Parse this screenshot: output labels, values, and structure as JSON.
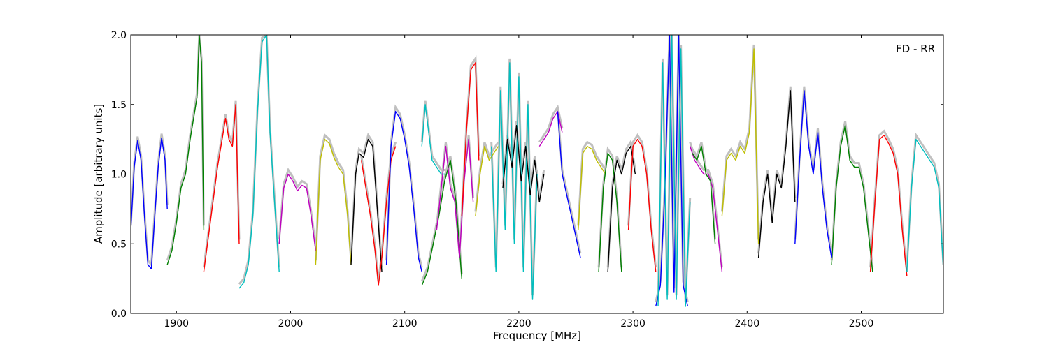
{
  "chart_data": {
    "type": "line",
    "xlabel": "Frequency [MHz]",
    "ylabel": "Amplitude [arbitrary units]",
    "annotation": "FD - RR",
    "xlim": [
      1860,
      2572
    ],
    "ylim": [
      0.0,
      2.0
    ],
    "xticks": [
      1900,
      2000,
      2100,
      2200,
      2300,
      2400,
      2500
    ],
    "xtick_labels": [
      "1900",
      "2000",
      "2100",
      "2200",
      "2300",
      "2400",
      "2500"
    ],
    "yticks": [
      0.0,
      0.5,
      1.0,
      1.5,
      2.0
    ],
    "ytick_labels": [
      "0.0",
      "0.5",
      "1.0",
      "1.5",
      "2.0"
    ],
    "grid": false,
    "background_color": "#c0c0c0",
    "segments": [
      {
        "color": "#0000ff",
        "x": [
          1860,
          1863,
          1866,
          1869,
          1872,
          1875,
          1878,
          1881,
          1884,
          1887,
          1890,
          1892
        ],
        "y": [
          0.6,
          1.05,
          1.24,
          1.1,
          0.7,
          0.35,
          0.32,
          0.7,
          1.05,
          1.26,
          1.1,
          0.75
        ]
      },
      {
        "color": "#008000",
        "x": [
          1892,
          1896,
          1900,
          1904,
          1908,
          1912,
          1915,
          1918,
          1920,
          1922,
          1924
        ],
        "y": [
          0.35,
          0.45,
          0.65,
          0.9,
          1.0,
          1.25,
          1.4,
          1.55,
          2.0,
          1.8,
          0.6
        ]
      },
      {
        "color": "#ff0000",
        "x": [
          1924,
          1928,
          1932,
          1936,
          1940,
          1943,
          1946,
          1949,
          1952,
          1955
        ],
        "y": [
          0.3,
          0.55,
          0.8,
          1.05,
          1.25,
          1.4,
          1.25,
          1.2,
          1.5,
          0.5
        ]
      },
      {
        "color": "#00bfbf",
        "x": [
          1955,
          1959,
          1963,
          1967,
          1971,
          1975,
          1979,
          1982,
          1986,
          1990
        ],
        "y": [
          0.18,
          0.22,
          0.35,
          0.7,
          1.45,
          1.95,
          2.0,
          1.3,
          0.8,
          0.3
        ]
      },
      {
        "color": "#bf00bf",
        "x": [
          1990,
          1994,
          1998,
          2002,
          2006,
          2010,
          2014,
          2018,
          2022
        ],
        "y": [
          0.5,
          0.9,
          1.0,
          0.95,
          0.88,
          0.92,
          0.9,
          0.7,
          0.45
        ]
      },
      {
        "color": "#bfbf00",
        "x": [
          2022,
          2026,
          2030,
          2034,
          2038,
          2042,
          2046,
          2050,
          2053
        ],
        "y": [
          0.35,
          1.1,
          1.25,
          1.22,
          1.12,
          1.05,
          1.0,
          0.7,
          0.35
        ]
      },
      {
        "color": "#000000",
        "x": [
          2053,
          2057,
          2060,
          2064,
          2068,
          2072,
          2076,
          2080
        ],
        "y": [
          0.35,
          1.0,
          1.15,
          1.12,
          1.25,
          1.2,
          0.75,
          0.3
        ]
      },
      {
        "color": "#ff0000",
        "x": [
          2062,
          2066,
          2070,
          2074,
          2077,
          2080,
          2084,
          2088,
          2092
        ],
        "y": [
          1.1,
          0.9,
          0.7,
          0.45,
          0.2,
          0.4,
          0.8,
          1.1,
          1.2
        ]
      },
      {
        "color": "#0000ff",
        "x": [
          2084,
          2088,
          2092,
          2096,
          2100,
          2104,
          2108,
          2112,
          2115
        ],
        "y": [
          0.35,
          1.2,
          1.45,
          1.4,
          1.25,
          1.05,
          0.75,
          0.4,
          0.3
        ]
      },
      {
        "color": "#00bfbf",
        "x": [
          2115,
          2118,
          2121,
          2124,
          2128,
          2132,
          2136
        ],
        "y": [
          1.2,
          1.5,
          1.3,
          1.1,
          1.05,
          1.0,
          1.0
        ]
      },
      {
        "color": "#008000",
        "x": [
          2115,
          2120,
          2125,
          2130,
          2135,
          2140,
          2145,
          2150
        ],
        "y": [
          0.2,
          0.3,
          0.5,
          0.7,
          0.95,
          1.1,
          0.8,
          0.25
        ]
      },
      {
        "color": "#bf00bf",
        "x": [
          2128,
          2132,
          2136,
          2140,
          2144,
          2148,
          2152,
          2156,
          2160
        ],
        "y": [
          0.6,
          0.9,
          1.2,
          0.9,
          0.8,
          0.4,
          0.95,
          1.25,
          0.8
        ]
      },
      {
        "color": "#ff0000",
        "x": [
          2150,
          2154,
          2158,
          2162,
          2165
        ],
        "y": [
          0.7,
          1.3,
          1.75,
          1.8,
          1.1
        ]
      },
      {
        "color": "#bfbf00",
        "x": [
          2162,
          2166,
          2170,
          2174,
          2178,
          2182
        ],
        "y": [
          0.7,
          1.0,
          1.2,
          1.1,
          1.15,
          1.2
        ]
      },
      {
        "color": "#00bfbf",
        "x": [
          2176,
          2180,
          2184,
          2188,
          2192,
          2196,
          2200,
          2204,
          2208,
          2212,
          2216
        ],
        "y": [
          1.2,
          0.3,
          1.6,
          0.6,
          1.8,
          0.5,
          1.7,
          0.3,
          1.5,
          0.1,
          1.0
        ]
      },
      {
        "color": "#000000",
        "x": [
          2186,
          2190,
          2194,
          2198,
          2202,
          2206,
          2210,
          2214,
          2218,
          2222
        ],
        "y": [
          0.9,
          1.25,
          1.05,
          1.35,
          0.95,
          1.2,
          0.85,
          1.1,
          0.8,
          1.0
        ]
      },
      {
        "color": "#bf00bf",
        "x": [
          2218,
          2222,
          2226,
          2230,
          2234,
          2238
        ],
        "y": [
          1.2,
          1.25,
          1.3,
          1.4,
          1.45,
          1.3
        ]
      },
      {
        "color": "#0000ff",
        "x": [
          2234,
          2238,
          2242,
          2246,
          2250,
          2254
        ],
        "y": [
          1.45,
          1.0,
          0.85,
          0.7,
          0.55,
          0.4
        ]
      },
      {
        "color": "#bfbf00",
        "x": [
          2252,
          2256,
          2260,
          2264,
          2268,
          2272,
          2276
        ],
        "y": [
          0.6,
          1.15,
          1.2,
          1.18,
          1.1,
          1.05,
          1.0
        ]
      },
      {
        "color": "#008000",
        "x": [
          2270,
          2274,
          2278,
          2282,
          2286,
          2290
        ],
        "y": [
          0.3,
          0.9,
          1.15,
          1.1,
          0.8,
          0.3
        ]
      },
      {
        "color": "#000000",
        "x": [
          2278,
          2282,
          2286,
          2290,
          2294,
          2298,
          2302
        ],
        "y": [
          0.3,
          0.9,
          1.1,
          1.0,
          1.15,
          1.2,
          1.0
        ]
      },
      {
        "color": "#ff0000",
        "x": [
          2296,
          2300,
          2304,
          2308,
          2312,
          2316,
          2320
        ],
        "y": [
          0.6,
          1.2,
          1.25,
          1.2,
          1.0,
          0.6,
          0.3
        ]
      },
      {
        "color": "#0000ff",
        "x": [
          2320,
          2324,
          2328,
          2332,
          2336,
          2340,
          2344,
          2348
        ],
        "y": [
          0.05,
          0.2,
          0.9,
          2.0,
          0.15,
          2.0,
          0.2,
          0.05
        ]
      },
      {
        "color": "#00bfbf",
        "x": [
          2322,
          2326,
          2330,
          2334,
          2338,
          2342,
          2346,
          2350
        ],
        "y": [
          0.05,
          1.8,
          0.1,
          2.0,
          0.1,
          1.9,
          0.05,
          0.8
        ]
      },
      {
        "color": "#bf00bf",
        "x": [
          2350,
          2354,
          2358,
          2362,
          2366,
          2370,
          2374,
          2378
        ],
        "y": [
          1.2,
          1.1,
          1.05,
          1.0,
          1.0,
          0.9,
          0.6,
          0.3
        ]
      },
      {
        "color": "#008000",
        "x": [
          2352,
          2356,
          2360,
          2364,
          2368,
          2372
        ],
        "y": [
          1.15,
          1.1,
          1.2,
          1.0,
          0.95,
          0.5
        ]
      },
      {
        "color": "#bfbf00",
        "x": [
          2378,
          2382,
          2386,
          2390,
          2394,
          2398,
          2402,
          2406,
          2410
        ],
        "y": [
          0.7,
          1.1,
          1.15,
          1.1,
          1.2,
          1.15,
          1.3,
          1.9,
          0.5
        ]
      },
      {
        "color": "#000000",
        "x": [
          2410,
          2414,
          2418,
          2422,
          2426,
          2430,
          2434,
          2438,
          2442
        ],
        "y": [
          0.4,
          0.8,
          1.0,
          0.65,
          1.0,
          0.9,
          1.2,
          1.6,
          0.8
        ]
      },
      {
        "color": "#0000ff",
        "x": [
          2442,
          2446,
          2450,
          2454,
          2458,
          2462,
          2466,
          2470,
          2474
        ],
        "y": [
          0.5,
          1.1,
          1.6,
          1.2,
          1.0,
          1.3,
          0.9,
          0.6,
          0.4
        ]
      },
      {
        "color": "#008000",
        "x": [
          2474,
          2478,
          2482,
          2486,
          2490,
          2494,
          2498,
          2502,
          2506,
          2510
        ],
        "y": [
          0.35,
          0.9,
          1.2,
          1.35,
          1.1,
          1.05,
          1.05,
          0.9,
          0.6,
          0.3
        ]
      },
      {
        "color": "#ff0000",
        "x": [
          2508,
          2512,
          2516,
          2520,
          2524,
          2528,
          2532,
          2536,
          2540
        ],
        "y": [
          0.3,
          0.8,
          1.25,
          1.28,
          1.22,
          1.15,
          1.0,
          0.6,
          0.27
        ]
      },
      {
        "color": "#00bfbf",
        "x": [
          2540,
          2544,
          2548,
          2552,
          2556,
          2560,
          2564,
          2568,
          2572
        ],
        "y": [
          0.3,
          0.9,
          1.25,
          1.2,
          1.15,
          1.1,
          1.05,
          0.9,
          0.32
        ]
      }
    ]
  }
}
